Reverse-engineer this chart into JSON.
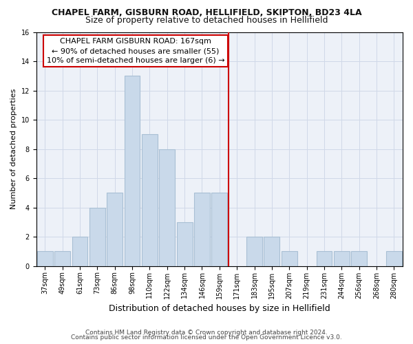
{
  "title": "CHAPEL FARM, GISBURN ROAD, HELLIFIELD, SKIPTON, BD23 4LA",
  "subtitle": "Size of property relative to detached houses in Hellifield",
  "xlabel": "Distribution of detached houses by size in Hellifield",
  "ylabel": "Number of detached properties",
  "categories": [
    "37sqm",
    "49sqm",
    "61sqm",
    "73sqm",
    "86sqm",
    "98sqm",
    "110sqm",
    "122sqm",
    "134sqm",
    "146sqm",
    "159sqm",
    "171sqm",
    "183sqm",
    "195sqm",
    "207sqm",
    "219sqm",
    "231sqm",
    "244sqm",
    "256sqm",
    "268sqm",
    "280sqm"
  ],
  "values": [
    1,
    1,
    2,
    4,
    5,
    13,
    9,
    8,
    3,
    5,
    5,
    0,
    2,
    2,
    1,
    0,
    1,
    1,
    1,
    0,
    1
  ],
  "bar_color": "#c9d9ea",
  "bar_edgecolor": "#a8bfd4",
  "vline_x": 11,
  "vline_color": "#cc0000",
  "annotation_line1": "CHAPEL FARM GISBURN ROAD: 167sqm",
  "annotation_line2": "← 90% of detached houses are smaller (55)",
  "annotation_line3": "10% of semi-detached houses are larger (6) →",
  "annotation_box_edgecolor": "#cc0000",
  "annotation_box_facecolor": "#ffffff",
  "footer1": "Contains HM Land Registry data © Crown copyright and database right 2024.",
  "footer2": "Contains public sector information licensed under the Open Government Licence v3.0.",
  "ylim": [
    0,
    16
  ],
  "yticks": [
    0,
    2,
    4,
    6,
    8,
    10,
    12,
    14,
    16
  ],
  "grid_color": "#d0d8e8",
  "bg_color": "#edf1f8",
  "fig_bg": "#ffffff",
  "title_fontsize": 9,
  "subtitle_fontsize": 9,
  "xlabel_fontsize": 9,
  "ylabel_fontsize": 8,
  "tick_fontsize": 7,
  "annotation_fontsize": 8,
  "footer_fontsize": 6.5
}
